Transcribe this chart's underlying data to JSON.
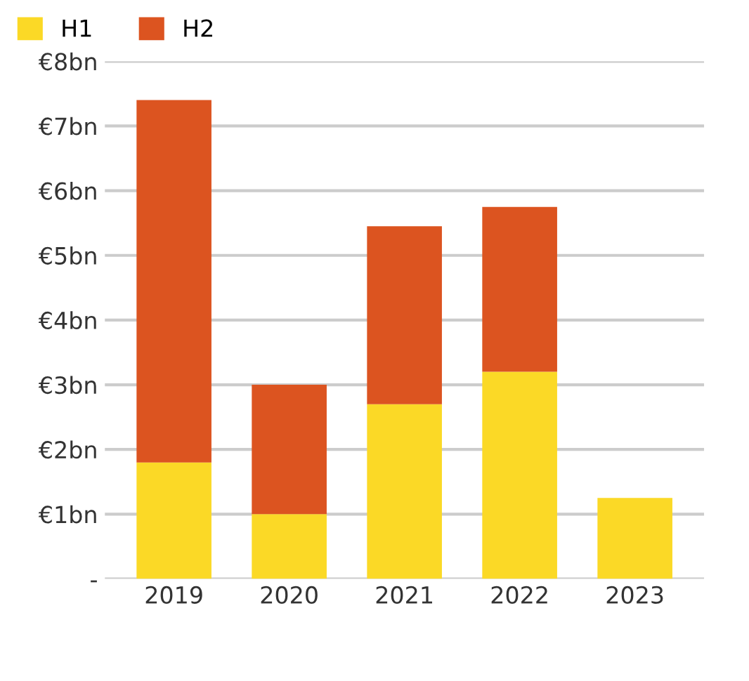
{
  "chart_data": {
    "type": "bar",
    "stacked": true,
    "categories": [
      "2019",
      "2020",
      "2021",
      "2022",
      "2023"
    ],
    "series": [
      {
        "name": "H1",
        "color": "#fbd926",
        "values": [
          1.8,
          1.0,
          2.7,
          3.2,
          1.25
        ]
      },
      {
        "name": "H2",
        "color": "#dc5420",
        "values": [
          5.6,
          2.0,
          2.75,
          2.55,
          null
        ]
      }
    ],
    "ylim": [
      0,
      8
    ],
    "yticks": [
      {
        "value": 0,
        "label": "-"
      },
      {
        "value": 1,
        "label": "€1bn"
      },
      {
        "value": 2,
        "label": "€2bn"
      },
      {
        "value": 3,
        "label": "€3bn"
      },
      {
        "value": 4,
        "label": "€4bn"
      },
      {
        "value": 5,
        "label": "€5bn"
      },
      {
        "value": 6,
        "label": "€6bn"
      },
      {
        "value": 7,
        "label": "€7bn"
      },
      {
        "value": 8,
        "label": "€8bn"
      }
    ],
    "grid": "y",
    "legend": "top left"
  }
}
